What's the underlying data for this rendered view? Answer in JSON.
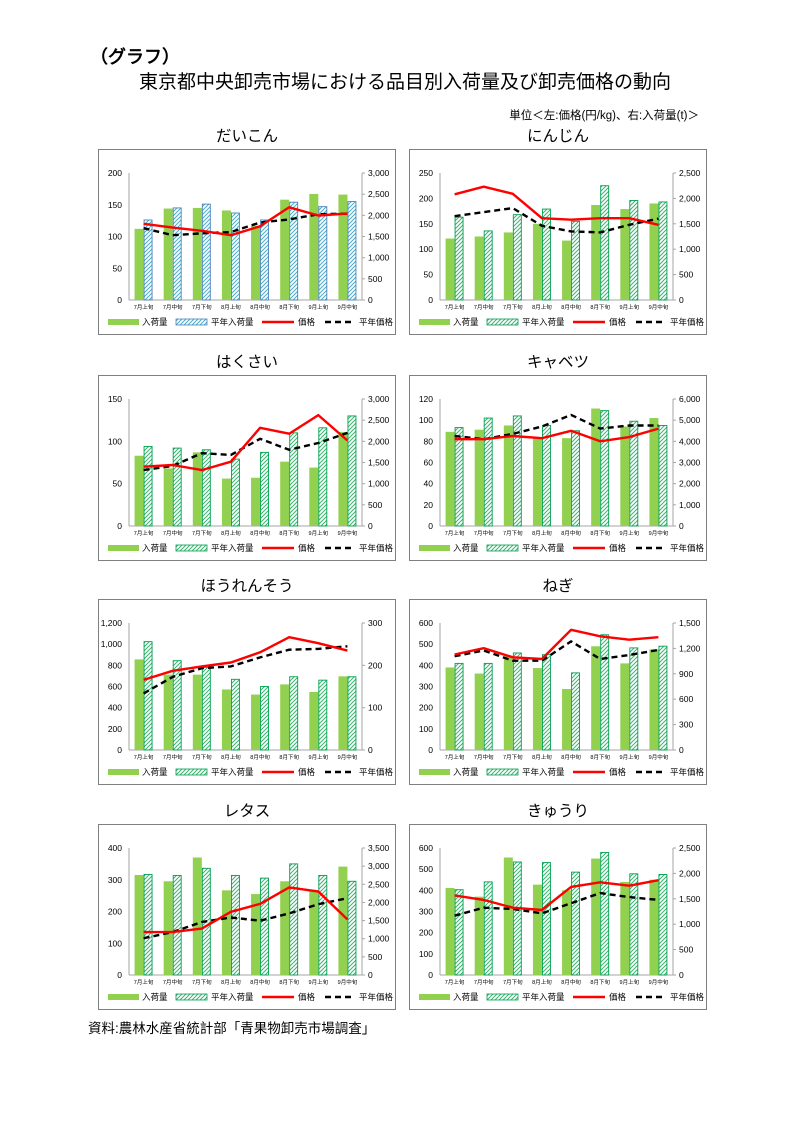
{
  "header": {
    "label": "（グラフ）",
    "title": "東京都中央卸売市場における品目別入荷量及び卸売価格の動向",
    "unit": "単位＜左:価格(円/kg)、右:入荷量(t)＞"
  },
  "footer": {
    "source": "資料:農林水産省統計部「青果物卸売市場調査」"
  },
  "colors": {
    "volume_bar": "#92D050",
    "price_line": "#FF0000",
    "normal_price_line": "#000000",
    "axis": "#A6A6A6"
  },
  "chart_data": [
    {
      "type": "bar",
      "title": "だいこん",
      "legend": "bottom",
      "grid": false,
      "hatch_color": "#4BACC6",
      "hatch_border": "#4F81BD",
      "categories": [
        "7月上旬",
        "7月中旬",
        "7月下旬",
        "8月上旬",
        "8月中旬",
        "8月下旬",
        "9月上旬",
        "9月中旬"
      ],
      "y_left": {
        "label": "価格(円/kg)",
        "min": 0,
        "max": 200,
        "tick_labels": [
          "0",
          "50",
          "100",
          "150",
          "200"
        ]
      },
      "y_right": {
        "label": "入荷量(t)",
        "min": 0,
        "max": 3000,
        "tick_labels": [
          "0",
          "500",
          "1,000",
          "1,500",
          "2,000",
          "2,500",
          "3,000"
        ]
      },
      "series": [
        {
          "name": "入荷量",
          "kind": "bar",
          "axis": "right",
          "values": [
            1680,
            2160,
            2175,
            2115,
            1755,
            2370,
            2505,
            2490
          ]
        },
        {
          "name": "平年入荷量",
          "kind": "bar-hatched",
          "axis": "right",
          "values": [
            1890,
            2175,
            2265,
            2055,
            1890,
            2310,
            2205,
            2325
          ]
        },
        {
          "name": "価格",
          "kind": "line",
          "axis": "left",
          "values": [
            120,
            114,
            109,
            102,
            116,
            146,
            133,
            136
          ]
        },
        {
          "name": "平年価格",
          "kind": "line-dashed",
          "axis": "left",
          "values": [
            113,
            102,
            105,
            107,
            122,
            127,
            135,
            136
          ]
        }
      ]
    },
    {
      "type": "bar",
      "title": "にんじん",
      "legend": "bottom",
      "grid": false,
      "hatch_color": "#3CB371",
      "hatch_border": "#00A050",
      "categories": [
        "7月上旬",
        "7月中旬",
        "7月下旬",
        "8月上旬",
        "8月中旬",
        "8月下旬",
        "9月上旬",
        "9月中旬"
      ],
      "y_left": {
        "label": "価格(円/kg)",
        "min": 0,
        "max": 250,
        "tick_labels": [
          "0",
          "50",
          "100",
          "150",
          "200",
          "250"
        ]
      },
      "y_right": {
        "label": "入荷量(t)",
        "min": 0,
        "max": 2500,
        "tick_labels": [
          "0",
          "500",
          "1,000",
          "1,500",
          "2,000",
          "2,500"
        ]
      },
      "series": [
        {
          "name": "入荷量",
          "kind": "bar",
          "axis": "right",
          "values": [
            1210,
            1250,
            1330,
            1500,
            1170,
            1870,
            1790,
            1900
          ]
        },
        {
          "name": "平年入荷量",
          "kind": "bar-hatched",
          "axis": "right",
          "values": [
            1630,
            1360,
            1680,
            1790,
            1550,
            2250,
            1960,
            1930
          ]
        },
        {
          "name": "価格",
          "kind": "line",
          "axis": "left",
          "values": [
            208,
            223,
            209,
            161,
            158,
            161,
            161,
            148
          ]
        },
        {
          "name": "平年価格",
          "kind": "line-dashed",
          "axis": "left",
          "values": [
            165,
            173,
            181,
            146,
            135,
            133,
            148,
            160
          ]
        }
      ]
    },
    {
      "type": "bar",
      "title": "はくさい",
      "legend": "bottom",
      "grid": false,
      "hatch_color": "#3CB371",
      "hatch_border": "#00A050",
      "categories": [
        "7月上旬",
        "7月中旬",
        "7月下旬",
        "8月上旬",
        "8月中旬",
        "8月下旬",
        "9月上旬",
        "9月中旬"
      ],
      "y_left": {
        "label": "価格(円/kg)",
        "min": 0,
        "max": 150,
        "tick_labels": [
          "0",
          "50",
          "100",
          "150"
        ]
      },
      "y_right": {
        "label": "入荷量(t)",
        "min": 0,
        "max": 3000,
        "tick_labels": [
          "0",
          "500",
          "1,000",
          "1,500",
          "2,000",
          "2,500",
          "3,000"
        ]
      },
      "series": [
        {
          "name": "入荷量",
          "kind": "bar",
          "axis": "right",
          "values": [
            1660,
            1360,
            1740,
            1120,
            1140,
            1520,
            1380,
            2220
          ]
        },
        {
          "name": "平年入荷量",
          "kind": "bar-hatched",
          "axis": "right",
          "values": [
            1880,
            1840,
            1800,
            1580,
            1740,
            2200,
            2320,
            2600
          ]
        },
        {
          "name": "価格",
          "kind": "line",
          "axis": "left",
          "values": [
            70,
            72,
            66,
            76,
            116,
            109,
            131,
            101
          ]
        },
        {
          "name": "平年価格",
          "kind": "line-dashed",
          "axis": "left",
          "values": [
            66,
            71,
            86,
            84,
            103,
            90,
            98,
            110
          ]
        }
      ]
    },
    {
      "type": "bar",
      "title": "キャベツ",
      "legend": "bottom",
      "grid": false,
      "hatch_color": "#3CB371",
      "hatch_border": "#00A050",
      "categories": [
        "7月上旬",
        "7月中旬",
        "7月下旬",
        "8月上旬",
        "8月中旬",
        "8月下旬",
        "9月上旬",
        "9月中旬"
      ],
      "y_left": {
        "label": "価格(円/kg)",
        "min": 0,
        "max": 120,
        "tick_labels": [
          "0",
          "20",
          "40",
          "60",
          "80",
          "100",
          "120"
        ]
      },
      "y_right": {
        "label": "入荷量(t)",
        "min": 0,
        "max": 6000,
        "tick_labels": [
          "0",
          "1,000",
          "2,000",
          "3,000",
          "4,000",
          "5,000",
          "6,000"
        ]
      },
      "series": [
        {
          "name": "入荷量",
          "kind": "bar",
          "axis": "right",
          "values": [
            4450,
            4550,
            4750,
            4200,
            4150,
            5550,
            4700,
            5100
          ]
        },
        {
          "name": "平年入荷量",
          "kind": "bar-hatched",
          "axis": "right",
          "values": [
            4650,
            5100,
            5200,
            4750,
            4500,
            5450,
            4950,
            4750
          ]
        },
        {
          "name": "価格",
          "kind": "line",
          "axis": "left",
          "values": [
            82,
            82,
            85,
            83,
            90,
            80,
            84,
            92
          ]
        },
        {
          "name": "平年価格",
          "kind": "line-dashed",
          "axis": "left",
          "values": [
            85,
            82,
            87,
            94,
            105,
            92,
            95,
            95
          ]
        }
      ]
    },
    {
      "type": "bar",
      "title": "ほうれんそう",
      "legend": "bottom",
      "grid": false,
      "hatch_color": "#3CB371",
      "hatch_border": "#00A050",
      "categories": [
        "7月上旬",
        "7月中旬",
        "7月下旬",
        "8月上旬",
        "8月中旬",
        "8月下旬",
        "9月上旬",
        "9月中旬"
      ],
      "y_left": {
        "label": "価格(円/kg)",
        "min": 0,
        "max": 1200,
        "tick_labels": [
          "0",
          "200",
          "400",
          "600",
          "800",
          "1,000",
          "1,200"
        ]
      },
      "y_right": {
        "label": "入荷量(t)",
        "min": 0,
        "max": 300,
        "tick_labels": [
          "0",
          "100",
          "200",
          "300"
        ]
      },
      "series": [
        {
          "name": "入荷量",
          "kind": "bar",
          "axis": "right",
          "values": [
            214,
            178,
            178,
            143,
            131,
            155,
            137,
            174
          ]
        },
        {
          "name": "平年入荷量",
          "kind": "bar-hatched",
          "axis": "right",
          "values": [
            256,
            211,
            195,
            167,
            150,
            173,
            165,
            173
          ]
        },
        {
          "name": "価格",
          "kind": "line",
          "axis": "left",
          "values": [
            662,
            748,
            790,
            827,
            923,
            1066,
            1009,
            939
          ]
        },
        {
          "name": "平年価格",
          "kind": "line-dashed",
          "axis": "left",
          "values": [
            535,
            691,
            773,
            790,
            875,
            948,
            955,
            980
          ]
        }
      ]
    },
    {
      "type": "bar",
      "title": "ねぎ",
      "legend": "bottom",
      "grid": false,
      "hatch_color": "#3CB371",
      "hatch_border": "#00A050",
      "categories": [
        "7月上旬",
        "7月中旬",
        "7月下旬",
        "8月上旬",
        "8月中旬",
        "8月下旬",
        "9月上旬",
        "9月中旬"
      ],
      "y_left": {
        "label": "価格(円/kg)",
        "min": 0,
        "max": 600,
        "tick_labels": [
          "0",
          "100",
          "200",
          "300",
          "400",
          "500",
          "600"
        ]
      },
      "y_right": {
        "label": "入荷量(t)",
        "min": 0,
        "max": 1500,
        "tick_labels": [
          "0",
          "300",
          "600",
          "900",
          "1,200",
          "1,500"
        ]
      },
      "series": [
        {
          "name": "入荷量",
          "kind": "bar",
          "axis": "right",
          "values": [
            975,
            903,
            1107,
            968,
            720,
            1225,
            1023,
            1188
          ]
        },
        {
          "name": "平年入荷量",
          "kind": "bar-hatched",
          "axis": "right",
          "values": [
            1023,
            1023,
            1146,
            1126,
            911,
            1361,
            1206,
            1226
          ]
        },
        {
          "name": "価格",
          "kind": "line",
          "axis": "left",
          "values": [
            451,
            481,
            438,
            430,
            568,
            537,
            521,
            533
          ]
        },
        {
          "name": "平年価格",
          "kind": "line-dashed",
          "axis": "left",
          "values": [
            443,
            470,
            422,
            422,
            513,
            430,
            449,
            473
          ]
        }
      ]
    },
    {
      "type": "bar",
      "title": "レタス",
      "legend": "bottom",
      "grid": false,
      "hatch_color": "#3CB371",
      "hatch_border": "#00A050",
      "categories": [
        "7月上旬",
        "7月中旬",
        "7月下旬",
        "8月上旬",
        "8月中旬",
        "8月下旬",
        "9月上旬",
        "9月中旬"
      ],
      "y_left": {
        "label": "価格(円/kg)",
        "min": 0,
        "max": 400,
        "tick_labels": [
          "0",
          "100",
          "200",
          "300",
          "400"
        ]
      },
      "y_right": {
        "label": "入荷量(t)",
        "min": 0,
        "max": 3500,
        "tick_labels": [
          "0",
          "500",
          "1,000",
          "1,500",
          "2,000",
          "2,500",
          "3,000",
          "3,500"
        ]
      },
      "series": [
        {
          "name": "入荷量",
          "kind": "bar",
          "axis": "right",
          "values": [
            2756,
            2583,
            3238,
            2333,
            2231,
            2583,
            2320,
            2987
          ]
        },
        {
          "name": "平年入荷量",
          "kind": "bar-hatched",
          "axis": "right",
          "values": [
            2772,
            2744,
            2940,
            2744,
            2670,
            3062,
            2744,
            2583
          ]
        },
        {
          "name": "価格",
          "kind": "line",
          "axis": "left",
          "values": [
            135,
            135,
            146,
            199,
            224,
            276,
            263,
            175
          ]
        },
        {
          "name": "平年価格",
          "kind": "line-dashed",
          "axis": "left",
          "values": [
            116,
            135,
            167,
            181,
            171,
            194,
            223,
            242
          ]
        }
      ]
    },
    {
      "type": "bar",
      "title": "きゅうり",
      "legend": "bottom",
      "grid": false,
      "hatch_color": "#3CB371",
      "hatch_border": "#00A050",
      "categories": [
        "7月上旬",
        "7月中旬",
        "7月下旬",
        "8月上旬",
        "8月中旬",
        "8月下旬",
        "9月上旬",
        "9月中旬"
      ],
      "y_left": {
        "label": "価格(円/kg)",
        "min": 0,
        "max": 600,
        "tick_labels": [
          "0",
          "100",
          "200",
          "300",
          "400",
          "500",
          "600"
        ]
      },
      "y_right": {
        "label": "入荷量(t)",
        "min": 0,
        "max": 2500,
        "tick_labels": [
          "0",
          "500",
          "1,000",
          "1,500",
          "2,000",
          "2,500"
        ]
      },
      "series": [
        {
          "name": "入荷量",
          "kind": "bar",
          "axis": "right",
          "values": [
            1713,
            1542,
            2313,
            1779,
            1667,
            2292,
            1833,
            1875
          ]
        },
        {
          "name": "平年入荷量",
          "kind": "bar-hatched",
          "axis": "right",
          "values": [
            1679,
            1833,
            2225,
            2213,
            2025,
            2413,
            1992,
            1979
          ]
        },
        {
          "name": "価格",
          "kind": "line",
          "axis": "left",
          "values": [
            376,
            355,
            318,
            307,
            416,
            438,
            422,
            448
          ]
        },
        {
          "name": "平年価格",
          "kind": "line-dashed",
          "axis": "left",
          "values": [
            280,
            318,
            312,
            291,
            339,
            387,
            368,
            355
          ]
        }
      ]
    }
  ]
}
